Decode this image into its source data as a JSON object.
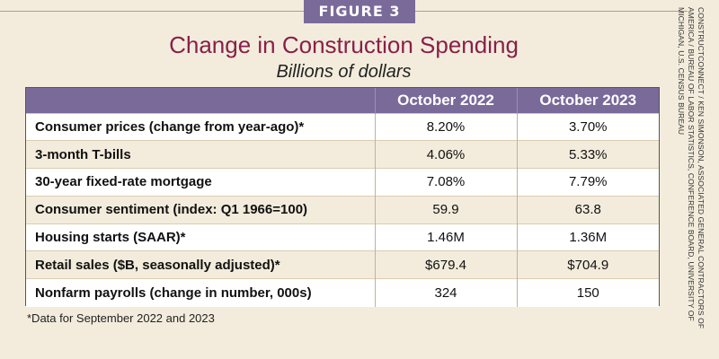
{
  "figure_label": "FIGURE 3",
  "title": "Change in Construction Spending",
  "subtitle": "Billions of dollars",
  "table": {
    "headers": [
      "",
      "October 2022",
      "October 2023"
    ],
    "rows": [
      {
        "label": "Consumer prices (change from year-ago)*",
        "v2022": "8.20%",
        "v2023": "3.70%"
      },
      {
        "label": "3-month T-bills",
        "v2022": "4.06%",
        "v2023": "5.33%"
      },
      {
        "label": "30-year fixed-rate mortgage",
        "v2022": "7.08%",
        "v2023": "7.79%"
      },
      {
        "label": "Consumer sentiment (index: Q1 1966=100)",
        "v2022": "59.9",
        "v2023": "63.8"
      },
      {
        "label": "Housing starts (SAAR)*",
        "v2022": "1.46M",
        "v2023": "1.36M"
      },
      {
        "label": "Retail sales ($B, seasonally adjusted)*",
        "v2022": "$679.4",
        "v2023": "$704.9"
      },
      {
        "label": "Nonfarm payrolls (change in number, 000s)",
        "v2022": "324",
        "v2023": "150"
      }
    ]
  },
  "footnote": "*Data for September 2022 and 2023",
  "credit": "ConstructConnect / Ken Simonson, Associated General Contractors of America / Bureau of Labor Statistics, Conference Board, University of Michigan, U.S. Census Bureau",
  "colors": {
    "header_bg": "#7a6a9a",
    "title": "#8a1f4a",
    "page_bg": "#f3ecdc"
  }
}
